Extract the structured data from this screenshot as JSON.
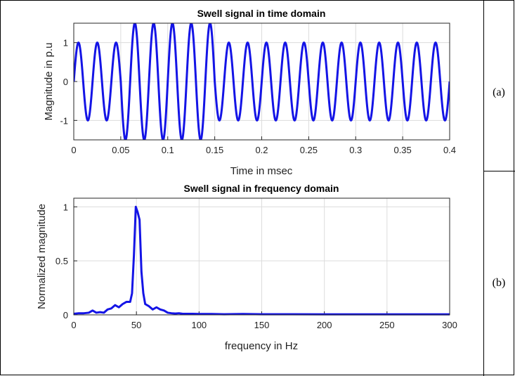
{
  "panels": [
    {
      "side_label": "(a)",
      "chart_data": {
        "type": "line",
        "title": "Swell signal in time domain",
        "xlabel": "Time in msec",
        "ylabel": "Magnitude in p.u",
        "xlim": [
          0,
          0.4
        ],
        "ylim": [
          -1.5,
          1.5
        ],
        "x_ticks": [
          "0",
          "0.05",
          "0.1",
          "0.15",
          "0.2",
          "0.25",
          "0.3",
          "0.35",
          "0.4"
        ],
        "y_ticks": [
          "-1",
          "0",
          "1"
        ],
        "grid": true,
        "series": [
          {
            "color": "#1414e6",
            "signal": {
              "form": "sine",
              "cycles_per_xunit": 50,
              "base_amplitude": 1.0,
              "swell_amplitude": 1.5,
              "swell_start": 0.05,
              "swell_end": 0.15
            }
          }
        ]
      }
    },
    {
      "side_label": "(b)",
      "chart_data": {
        "type": "line",
        "title": "Swell signal in frequency domain",
        "xlabel": "frequency in Hz",
        "ylabel": "Normalized magnitude",
        "xlim": [
          0,
          300
        ],
        "ylim": [
          0,
          1.08
        ],
        "x_ticks": [
          "0",
          "50",
          "100",
          "150",
          "200",
          "250",
          "300"
        ],
        "y_ticks": [
          "0",
          "0.5",
          "1"
        ],
        "grid": true,
        "series": [
          {
            "color": "#1414e6",
            "x": [
              0,
              4,
              8,
              12,
              15,
              18,
              21,
              24,
              27,
              30,
              33,
              36,
              39,
              42,
              45,
              46.5,
              48,
              49.5,
              51,
              52.5,
              54,
              55.5,
              57,
              60,
              63,
              66,
              69,
              72,
              75,
              78,
              81,
              84,
              87,
              90,
              95,
              100,
              110,
              120,
              135,
              150,
              175,
              200,
              250,
              300
            ],
            "y": [
              0.01,
              0.015,
              0.015,
              0.02,
              0.04,
              0.02,
              0.025,
              0.02,
              0.05,
              0.06,
              0.09,
              0.07,
              0.1,
              0.12,
              0.12,
              0.2,
              0.55,
              1.0,
              0.95,
              0.88,
              0.4,
              0.2,
              0.1,
              0.08,
              0.05,
              0.07,
              0.05,
              0.04,
              0.02,
              0.015,
              0.012,
              0.015,
              0.01,
              0.01,
              0.01,
              0.008,
              0.008,
              0.006,
              0.008,
              0.006,
              0.006,
              0.005,
              0.005,
              0.005
            ]
          }
        ]
      }
    }
  ]
}
